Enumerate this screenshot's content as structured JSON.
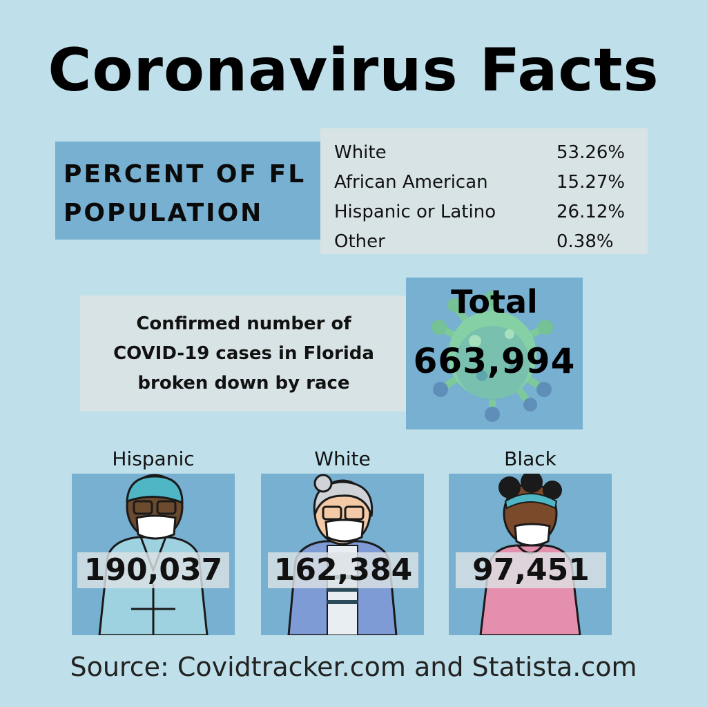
{
  "title": "Coronavirus Facts",
  "population": {
    "label_line1": "PERCENT OF FL",
    "label_line2": "POPULATION",
    "rows": [
      {
        "group": "White",
        "percent": "53.26%"
      },
      {
        "group": "African American",
        "percent": "15.27%"
      },
      {
        "group": "Hispanic or Latino",
        "percent": "26.12%"
      },
      {
        "group": "Other",
        "percent": "0.38%"
      }
    ]
  },
  "confirmed": {
    "line1": "Confirmed number of",
    "line2": "COVID-19 cases in Florida",
    "line3": "broken down by race"
  },
  "total": {
    "label": "Total",
    "value": "663,994"
  },
  "groups": [
    {
      "label": "Hispanic",
      "count": "190,037"
    },
    {
      "label": "White",
      "count": "162,384"
    },
    {
      "label": "Black",
      "count": "97,451"
    }
  ],
  "source": "Source: Covidtracker.com and Statista.com",
  "colors": {
    "background": "#bfe0ea",
    "panel_blue": "#77b0d0",
    "panel_grey": "#d8e3e6",
    "virus_green": "#7ec99a"
  },
  "icons": [
    "coronavirus-icon",
    "hispanic-person-illustration",
    "white-person-illustration",
    "black-person-illustration"
  ]
}
